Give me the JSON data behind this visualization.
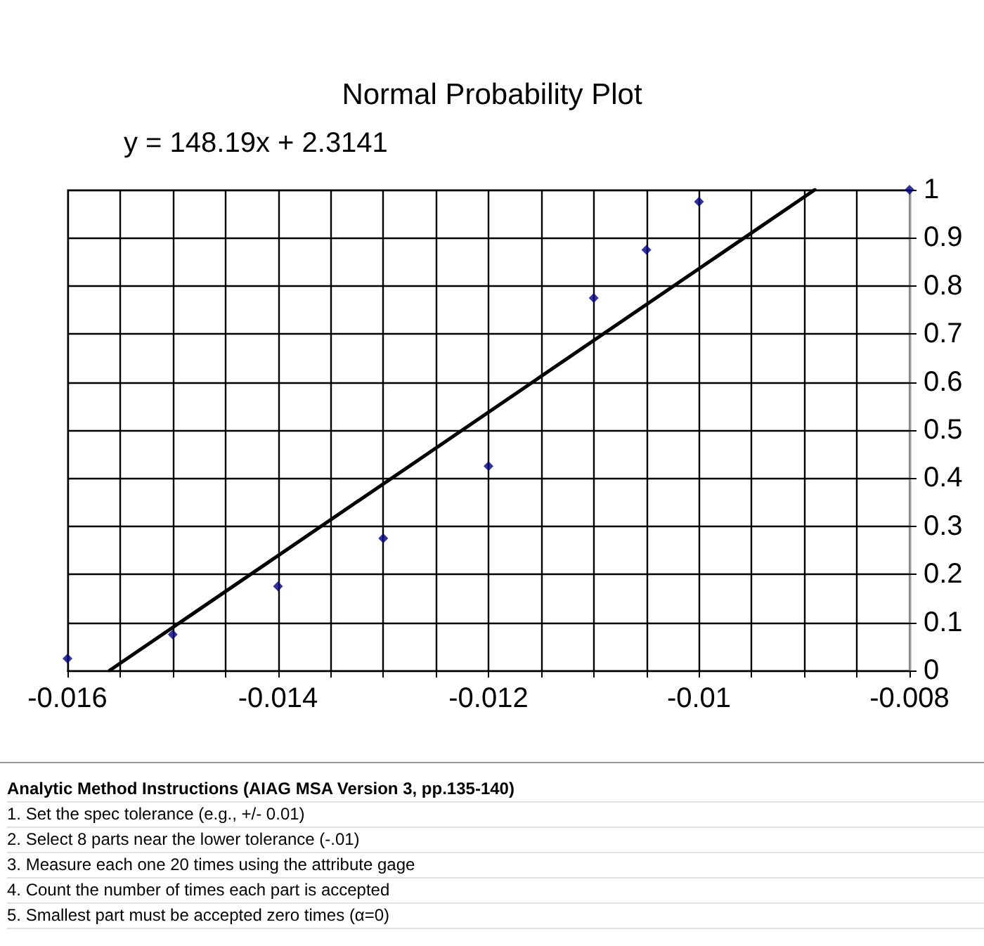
{
  "chart_data": {
    "type": "scatter",
    "title": "Normal Probability Plot",
    "annotations": [
      "y = 148.19x + 2.3141",
      "Analytic Method Instructions (AIAG MSA Version 3, pp.135-140)",
      "1. Set the spec tolerance (e.g., +/- 0.01)",
      "2. Select 8 parts near the lower tolerance (-.01)",
      "3. Measure each one 20 times using the attribute gage",
      "4. Count the number of times each part is accepted",
      "5. Smallest part must be accepted zero times (α=0)"
    ],
    "series": [
      {
        "color": "#000080",
        "x": [
          -0.016,
          -0.015,
          -0.014,
          -0.013,
          -0.012,
          -0.011,
          -0.0105,
          -0.01,
          -0.008
        ],
        "values": [
          0.025,
          0.075,
          0.175,
          0.275,
          0.425,
          0.775,
          0.875,
          0.975,
          1.0
        ]
      },
      {
        "type": "line",
        "color": "#000000",
        "marker": "none",
        "x": [
          -0.0156,
          -0.0089
        ],
        "values": [
          0,
          1
        ]
      }
    ],
    "xlim": [
      -0.016,
      -0.008
    ],
    "xticks": [
      -0.016,
      {
        "value": -0.0155,
        "label": null
      },
      {
        "value": -0.015,
        "label": null
      },
      {
        "value": -0.0145,
        "label": null
      },
      -0.014,
      {
        "value": -0.0135,
        "label": null
      },
      {
        "value": -0.013,
        "label": null
      },
      {
        "value": -0.0125,
        "label": null
      },
      -0.012,
      {
        "value": -0.0115,
        "label": null
      },
      {
        "value": -0.011,
        "label": null
      },
      {
        "value": -0.0105,
        "label": null
      },
      -0.01,
      {
        "value": -0.0095,
        "label": null
      },
      {
        "value": -0.009,
        "label": null
      },
      {
        "value": -0.0085,
        "label": null
      },
      -0.008
    ],
    "ylim": [
      0,
      1
    ],
    "yticks": [
      0,
      0.1,
      0.2,
      0.3,
      0.4,
      0.5,
      0.6,
      0.7,
      0.8,
      0.9,
      1
    ],
    "grid": true,
    "marker": "diamond",
    "line_style": "solid"
  }
}
